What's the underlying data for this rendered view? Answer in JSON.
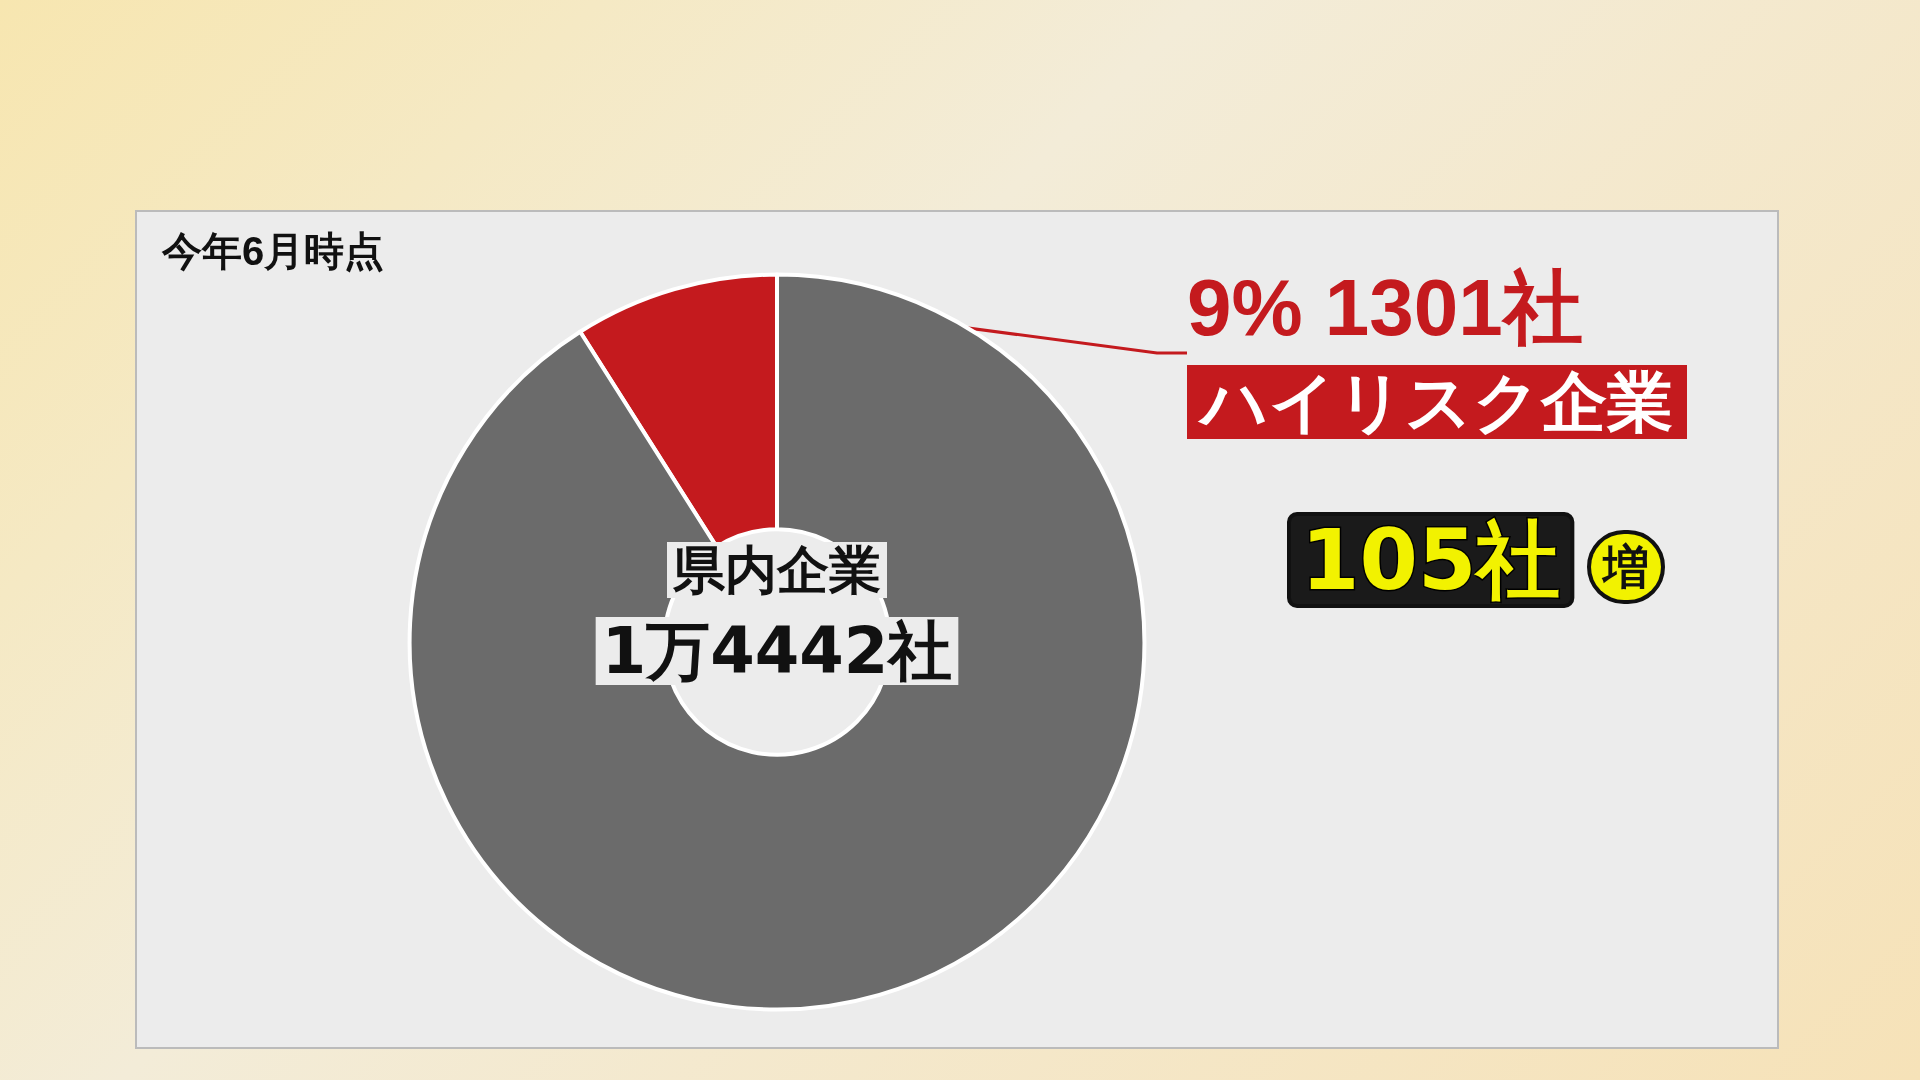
{
  "chart_data": {
    "type": "donut",
    "title": "今年6月時点",
    "categories": [
      "ハイリスク企業",
      null
    ],
    "values": [
      9,
      91
    ],
    "colors": [
      "#c41a1e",
      "#6b6b6b"
    ],
    "value_labels": [
      "9% 1301社",
      null
    ],
    "annotations": [
      "県内企業",
      "1万4442社",
      "105社",
      "増"
    ],
    "legend": false
  }
}
